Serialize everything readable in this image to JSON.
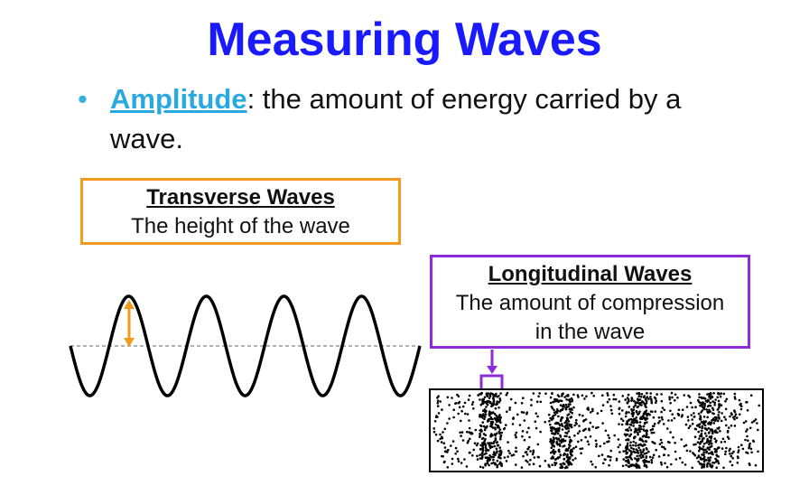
{
  "slide": {
    "title": "Measuring Waves",
    "bullet": {
      "term": "Amplitude",
      "text": ": the amount of energy carried by a wave."
    },
    "transverse": {
      "title": "Transverse Waves",
      "description": "The height of the wave"
    },
    "longitudinal": {
      "title": "Longitudinal Waves",
      "description_lines": [
        "The amount of compression",
        "in the wave"
      ]
    }
  }
}
